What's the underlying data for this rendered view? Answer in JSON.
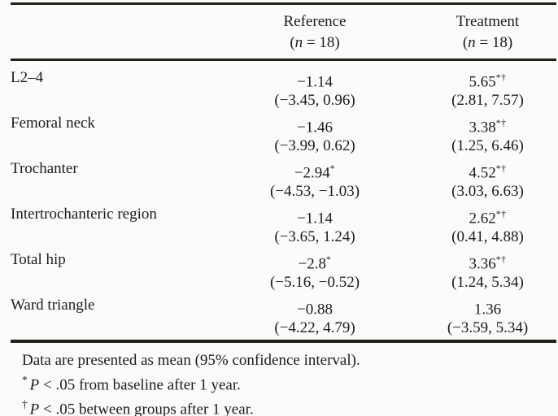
{
  "colors": {
    "ink": "#1e1c1a",
    "paper": "#fbfbfa",
    "rule": "#21201d"
  },
  "table": {
    "columns": [
      {
        "label": "Reference",
        "n_open": "(",
        "n_italic": "n",
        "n_rest": " = 18)"
      },
      {
        "label": "Treatment",
        "n_open": "(",
        "n_italic": "n",
        "n_rest": " = 18)"
      }
    ],
    "rows": [
      {
        "region": "L2–4",
        "ref_mean": "−1.14",
        "ref_marks": "",
        "ref_ci": "(−3.45, 0.96)",
        "treat_mean": "5.65",
        "treat_marks": "*†",
        "treat_ci": "(2.81, 7.57)"
      },
      {
        "region": "Femoral neck",
        "ref_mean": "−1.46",
        "ref_marks": "",
        "ref_ci": "(−3.99, 0.62)",
        "treat_mean": "3.38",
        "treat_marks": "*†",
        "treat_ci": "(1.25, 6.46)"
      },
      {
        "region": "Trochanter",
        "ref_mean": "−2.94",
        "ref_marks": "*",
        "ref_ci": "(−4.53, −1.03)",
        "treat_mean": "4.52",
        "treat_marks": "*†",
        "treat_ci": "(3.03, 6.63)"
      },
      {
        "region": "Intertrochanteric region",
        "ref_mean": "−1.14",
        "ref_marks": "",
        "ref_ci": "(−3.65, 1.24)",
        "treat_mean": "2.62",
        "treat_marks": "*†",
        "treat_ci": "(0.41, 4.88)"
      },
      {
        "region": "Total hip",
        "ref_mean": "−2.8",
        "ref_marks": "*",
        "ref_ci": "(−5.16, −0.52)",
        "treat_mean": "3.36",
        "treat_marks": "*†",
        "treat_ci": "(1.24, 5.34)"
      },
      {
        "region": "Ward triangle",
        "ref_mean": "−0.88",
        "ref_marks": "",
        "ref_ci": "(−4.22, 4.79)",
        "treat_mean": "1.36",
        "treat_marks": "",
        "treat_ci": "(−3.59, 5.34)"
      }
    ]
  },
  "footnotes": {
    "general": "Data are presented as mean (95% confidence interval).",
    "items": [
      {
        "marker": "*",
        "p": "P",
        "text": " < .05 from baseline after 1 year."
      },
      {
        "marker": "†",
        "p": "P",
        "text": " < .05 between groups after 1 year."
      }
    ]
  }
}
